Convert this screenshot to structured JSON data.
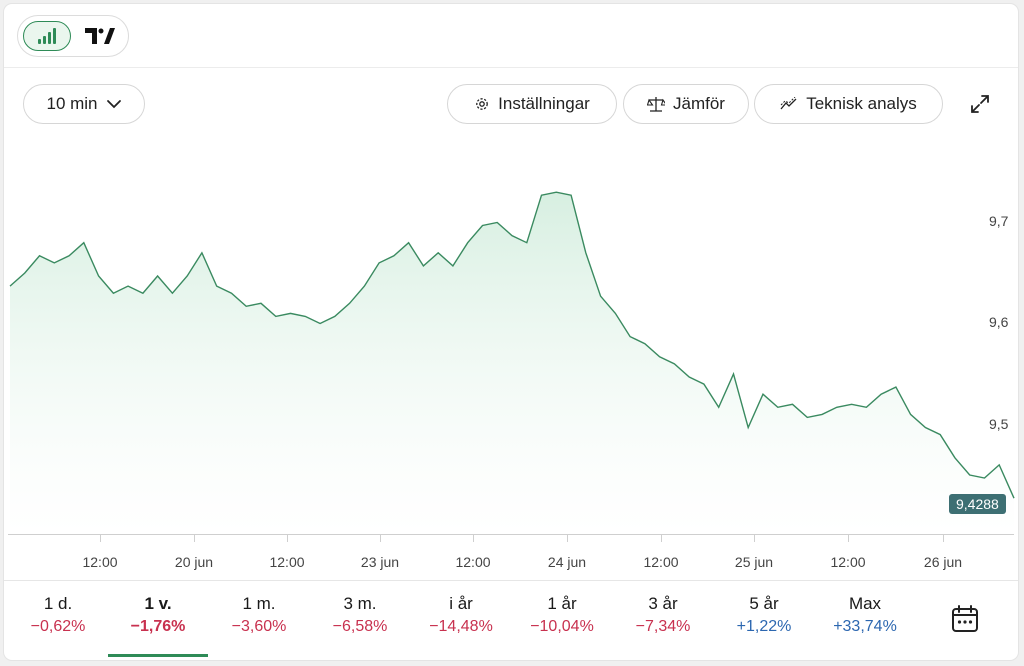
{
  "chart_toggle": {
    "active_icon": "bar-chart-icon",
    "tradingview_icon": "tradingview-logo-icon"
  },
  "toolbar": {
    "interval": "10 min",
    "settings": "Inställningar",
    "compare": "Jämför",
    "technical": "Teknisk analys",
    "expand_icon": "expand-icon"
  },
  "y_axis": [
    "9,7",
    "9,6",
    "9,5"
  ],
  "x_axis": [
    "12:00",
    "20 jun",
    "12:00",
    "23 jun",
    "12:00",
    "24 jun",
    "12:00",
    "25 jun",
    "12:00",
    "26 jun"
  ],
  "last_price": "9,4288",
  "periods": [
    {
      "label": "1 d.",
      "change": "−0,62%",
      "dir": "neg"
    },
    {
      "label": "1 v.",
      "change": "−1,76%",
      "dir": "neg",
      "active": true
    },
    {
      "label": "1 m.",
      "change": "−3,60%",
      "dir": "neg"
    },
    {
      "label": "3 m.",
      "change": "−6,58%",
      "dir": "neg"
    },
    {
      "label": "i år",
      "change": "−14,48%",
      "dir": "neg"
    },
    {
      "label": "1 år",
      "change": "−10,04%",
      "dir": "neg"
    },
    {
      "label": "3 år",
      "change": "−7,34%",
      "dir": "neg"
    },
    {
      "label": "5 år",
      "change": "+1,22%",
      "dir": "pos"
    },
    {
      "label": "Max",
      "change": "+33,74%",
      "dir": "pos"
    }
  ],
  "colors": {
    "line": "#3a8a60",
    "fill": "#e8f5ee",
    "negative": "#c8314f",
    "positive": "#2c67b0",
    "badge": "#3d6f73"
  },
  "chart_data": {
    "type": "area",
    "ylim": [
      9.4,
      9.77
    ],
    "y_ticks": [
      9.5,
      9.6,
      9.7
    ],
    "series": [
      {
        "values": [
          9.64,
          9.65,
          9.67,
          9.66,
          9.67,
          9.68,
          9.65,
          9.63,
          9.64,
          9.63,
          9.65,
          9.63,
          9.65,
          9.67,
          9.64,
          9.63,
          9.62,
          9.62,
          9.61,
          9.61,
          9.61,
          9.6,
          9.61,
          9.62,
          9.64,
          9.66,
          9.67,
          9.68,
          9.66,
          9.67,
          9.66,
          9.68,
          9.7,
          9.7,
          9.69,
          9.68,
          9.73,
          9.73,
          9.73,
          9.67,
          9.63,
          9.61,
          9.59,
          9.58,
          9.57,
          9.56,
          9.55,
          9.54,
          9.52,
          9.55,
          9.5,
          9.53,
          9.52,
          9.52,
          9.51,
          9.51,
          9.52,
          9.52,
          9.52,
          9.53,
          9.54,
          9.51,
          9.5,
          9.49,
          9.47,
          9.45,
          9.45,
          9.46,
          9.43
        ]
      }
    ]
  }
}
